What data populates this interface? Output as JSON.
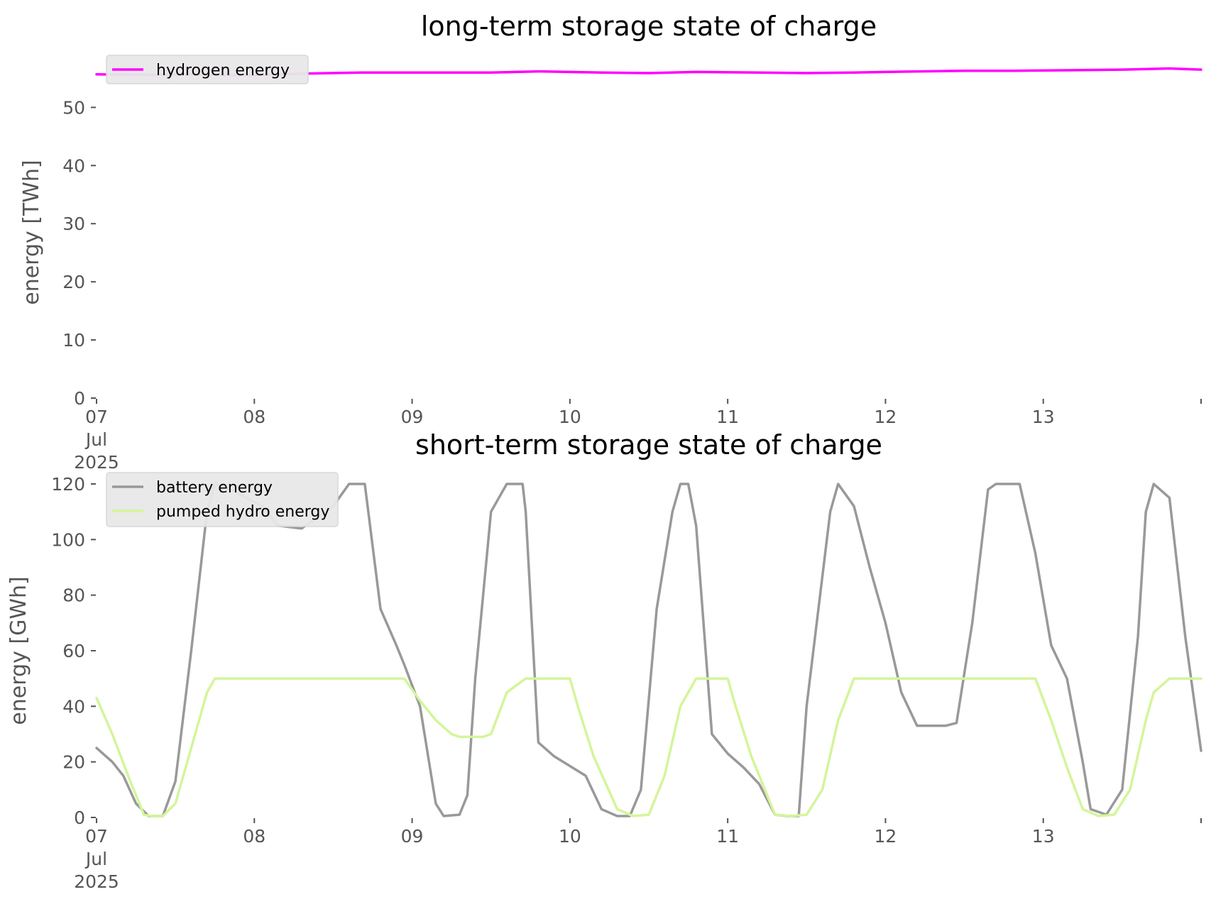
{
  "chart_data": [
    {
      "type": "line",
      "title": "long-term storage state of charge",
      "xlabel": "",
      "ylabel": "energy [TWh]",
      "ylim": [
        0,
        57
      ],
      "yticks": [
        "0",
        "10",
        "20",
        "30",
        "40",
        "50"
      ],
      "ytick_values": [
        0,
        10,
        20,
        30,
        40,
        50
      ],
      "xlim": [
        0,
        7
      ],
      "xticks": [
        {
          "value": 0,
          "label": [
            "07",
            "Jul",
            "2025"
          ]
        },
        {
          "value": 1,
          "label": [
            "08"
          ]
        },
        {
          "value": 2,
          "label": [
            "09"
          ]
        },
        {
          "value": 3,
          "label": [
            "10"
          ]
        },
        {
          "value": 4,
          "label": [
            "11"
          ]
        },
        {
          "value": 5,
          "label": [
            "12"
          ]
        },
        {
          "value": 6,
          "label": [
            "13"
          ]
        }
      ],
      "grid": false,
      "legend_position": "top-left",
      "series": [
        {
          "name": "hydrogen energy",
          "color": "#ff00ff",
          "x": [
            0,
            0.3,
            0.6,
            1.0,
            1.3,
            1.7,
            2.0,
            2.5,
            2.8,
            3.2,
            3.5,
            3.8,
            4.2,
            4.5,
            4.8,
            5.0,
            5.5,
            5.8,
            6.2,
            6.5,
            6.8,
            7.0
          ],
          "y": [
            55.7,
            55.6,
            55.7,
            55.5,
            55.8,
            56.0,
            56.0,
            56.0,
            56.2,
            56.0,
            55.9,
            56.1,
            56.0,
            55.9,
            56.0,
            56.1,
            56.3,
            56.3,
            56.4,
            56.5,
            56.7,
            56.5
          ]
        }
      ]
    },
    {
      "type": "line",
      "title": "short-term storage state of charge",
      "xlabel": "",
      "ylabel": "energy [GWh]",
      "ylim": [
        0,
        120
      ],
      "yticks": [
        "0",
        "20",
        "40",
        "60",
        "80",
        "100",
        "120"
      ],
      "ytick_values": [
        0,
        20,
        40,
        60,
        80,
        100,
        120
      ],
      "xlim": [
        0,
        7
      ],
      "xticks": [
        {
          "value": 0,
          "label": [
            "07",
            "Jul",
            "2025"
          ]
        },
        {
          "value": 1,
          "label": [
            "08"
          ]
        },
        {
          "value": 2,
          "label": [
            "09"
          ]
        },
        {
          "value": 3,
          "label": [
            "10"
          ]
        },
        {
          "value": 4,
          "label": [
            "11"
          ]
        },
        {
          "value": 5,
          "label": [
            "12"
          ]
        },
        {
          "value": 6,
          "label": [
            "13"
          ]
        }
      ],
      "grid": false,
      "legend_position": "top-left",
      "series": [
        {
          "name": "battery energy",
          "color": "#999999",
          "x": [
            0,
            0.1,
            0.17,
            0.25,
            0.33,
            0.38,
            0.42,
            0.5,
            0.6,
            0.7,
            0.75,
            0.85,
            0.95,
            1.05,
            1.15,
            1.3,
            1.5,
            1.6,
            1.65,
            1.7,
            1.8,
            1.9,
            1.95,
            2.05,
            2.15,
            2.2,
            2.3,
            2.35,
            2.4,
            2.5,
            2.6,
            2.7,
            2.72,
            2.8,
            2.9,
            3.1,
            3.2,
            3.3,
            3.38,
            3.45,
            3.55,
            3.65,
            3.7,
            3.75,
            3.8,
            3.9,
            4.0,
            4.1,
            4.2,
            4.3,
            4.38,
            4.45,
            4.5,
            4.65,
            4.7,
            4.8,
            4.9,
            5.0,
            5.1,
            5.2,
            5.3,
            5.38,
            5.45,
            5.55,
            5.65,
            5.7,
            5.85,
            5.95,
            6.05,
            6.15,
            6.25,
            6.3,
            6.4,
            6.5,
            6.6,
            6.65,
            6.7,
            6.8,
            6.9,
            7.0
          ],
          "y": [
            25,
            20,
            15,
            5,
            0.5,
            0.5,
            0.5,
            13,
            60,
            110,
            120,
            118,
            115,
            112,
            105,
            104,
            112,
            120,
            120,
            120,
            75,
            62,
            55,
            40,
            5,
            0.5,
            1,
            8,
            50,
            110,
            120,
            120,
            110,
            27,
            22,
            15,
            3,
            0.5,
            0.5,
            10,
            75,
            110,
            120,
            120,
            105,
            30,
            23,
            18,
            12,
            1,
            0.5,
            0.5,
            40,
            110,
            120,
            112,
            90,
            70,
            45,
            33,
            33,
            33,
            34,
            70,
            118,
            120,
            120,
            95,
            62,
            50,
            20,
            3,
            1,
            10,
            65,
            110,
            120,
            115,
            65,
            24
          ]
        },
        {
          "name": "pumped hydro energy",
          "color": "#d4f59a",
          "x": [
            0,
            0.1,
            0.2,
            0.3,
            0.35,
            0.42,
            0.5,
            0.6,
            0.7,
            0.75,
            1.0,
            1.5,
            1.95,
            2.05,
            2.15,
            2.25,
            2.3,
            2.45,
            2.5,
            2.6,
            2.72,
            3.0,
            3.05,
            3.15,
            3.3,
            3.4,
            3.5,
            3.6,
            3.7,
            3.8,
            4.0,
            4.05,
            4.15,
            4.3,
            4.4,
            4.5,
            4.6,
            4.7,
            4.8,
            5.0,
            5.5,
            5.95,
            6.05,
            6.15,
            6.25,
            6.35,
            6.45,
            6.55,
            6.65,
            6.7,
            6.8,
            7.0
          ],
          "y": [
            43,
            30,
            15,
            1,
            0.5,
            0.5,
            5,
            25,
            45,
            50,
            50,
            50,
            50,
            42,
            35,
            30,
            29,
            29,
            30,
            45,
            50,
            50,
            40,
            22,
            3,
            0.5,
            1,
            15,
            40,
            50,
            50,
            40,
            22,
            1,
            0.5,
            1,
            10,
            35,
            50,
            50,
            50,
            50,
            35,
            18,
            3,
            0.5,
            1,
            10,
            35,
            45,
            50,
            50
          ]
        }
      ]
    }
  ]
}
